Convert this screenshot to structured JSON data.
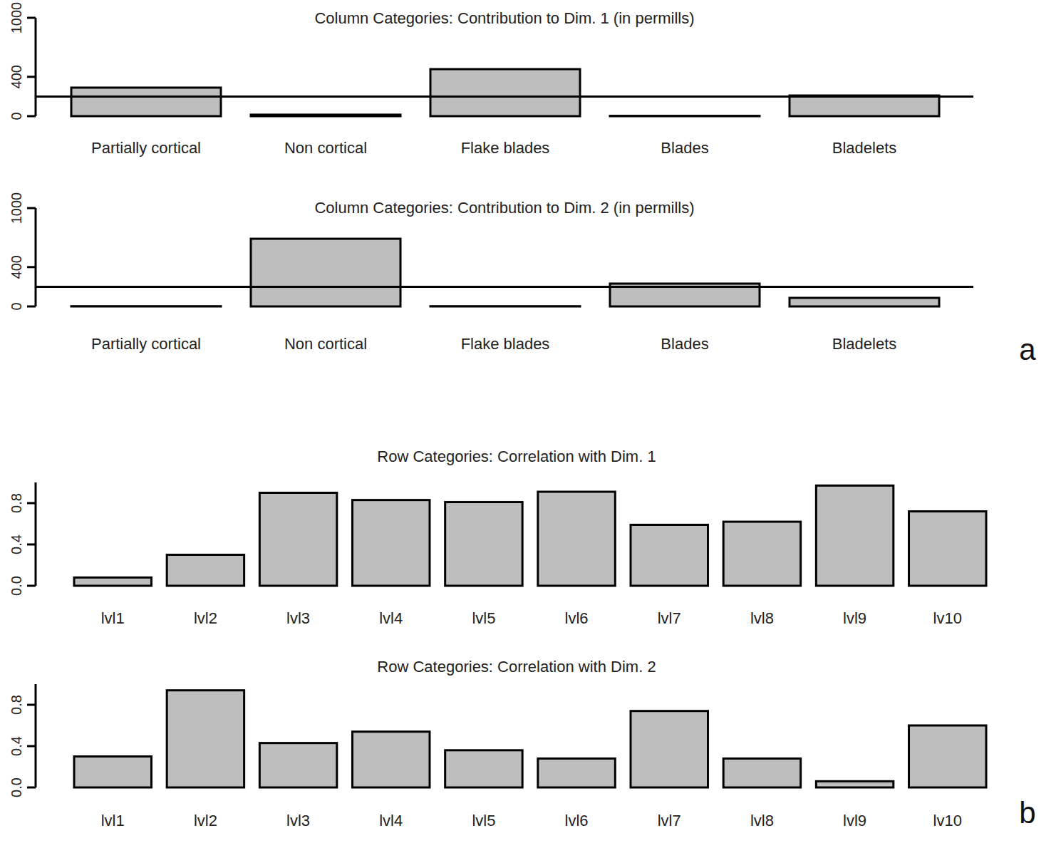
{
  "chart_data": [
    {
      "type": "bar",
      "title": "Column Categories: Contribution to Dim. 1 (in permills)",
      "categories": [
        "Partially cortical",
        "Non cortical",
        "Flake blades",
        "Blades",
        "Bladelets"
      ],
      "values": [
        290,
        15,
        478,
        3,
        210
      ],
      "color": "#bebebe",
      "ylim": [
        0,
        1000
      ],
      "yticks": [
        0,
        400,
        1000
      ],
      "reference_line": 200
    },
    {
      "type": "bar",
      "title": "Column Categories: Contribution to Dim. 2 (in permills)",
      "categories": [
        "Partially cortical",
        "Non cortical",
        "Flake blades",
        "Blades",
        "Bladelets"
      ],
      "values": [
        2,
        688,
        2,
        232,
        87
      ],
      "color": "#bebebe",
      "ylim": [
        0,
        1000
      ],
      "yticks": [
        0,
        400,
        1000
      ],
      "reference_line": 200,
      "panel_label": "a"
    },
    {
      "type": "bar",
      "title": "Row Categories: Correlation with Dim. 1",
      "categories": [
        "lvl1",
        "lvl2",
        "lvl3",
        "lvl4",
        "lvl5",
        "lvl6",
        "lvl7",
        "lvl8",
        "lvl9",
        "lv10"
      ],
      "values": [
        0.08,
        0.3,
        0.9,
        0.83,
        0.81,
        0.91,
        0.59,
        0.62,
        0.97,
        0.72
      ],
      "color": "#bebebe",
      "ylim": [
        0,
        1
      ],
      "yticks": [
        {
          "value": 0,
          "label": "0.0"
        },
        {
          "value": 0.4,
          "label": "0.4"
        },
        {
          "value": 0.8,
          "label": "0.8"
        }
      ]
    },
    {
      "type": "bar",
      "title": "Row Categories: Correlation with Dim. 2",
      "categories": [
        "lvl1",
        "lvl2",
        "lvl3",
        "lvl4",
        "lvl5",
        "lvl6",
        "lvl7",
        "lvl8",
        "lvl9",
        "lv10"
      ],
      "values": [
        0.3,
        0.94,
        0.43,
        0.54,
        0.36,
        0.28,
        0.74,
        0.28,
        0.06,
        0.6
      ],
      "color": "#bebebe",
      "ylim": [
        0,
        1
      ],
      "yticks": [
        {
          "value": 0,
          "label": "0.0"
        },
        {
          "value": 0.4,
          "label": "0.4"
        },
        {
          "value": 0.8,
          "label": "0.8"
        }
      ],
      "panel_label": "b"
    }
  ]
}
